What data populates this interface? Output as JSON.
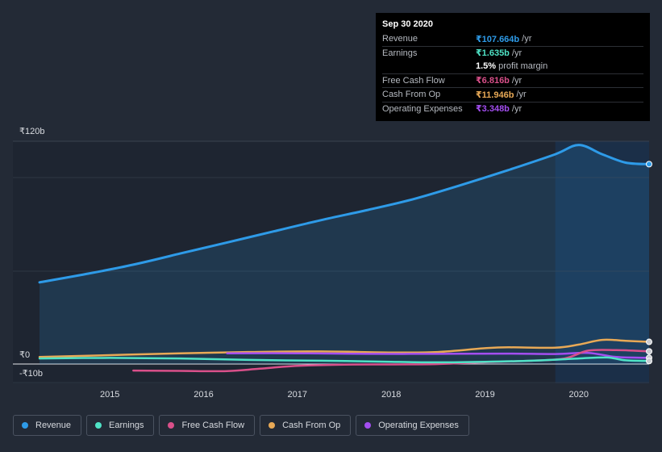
{
  "tooltip": {
    "date": "Sep 30 2020",
    "rows": [
      {
        "label": "Revenue",
        "value": "₹107.664b",
        "unit": "/yr",
        "color": "#2e9be8"
      },
      {
        "label": "Earnings",
        "value": "₹1.635b",
        "unit": "/yr",
        "color": "#4fe3c6"
      },
      {
        "label": "",
        "value": "1.5%",
        "unit": "profit margin",
        "color": "#ffffff"
      },
      {
        "label": "Free Cash Flow",
        "value": "₹6.816b",
        "unit": "/yr",
        "color": "#d9508a"
      },
      {
        "label": "Cash From Op",
        "value": "₹11.946b",
        "unit": "/yr",
        "color": "#e8a956"
      },
      {
        "label": "Operating Expenses",
        "value": "₹3.348b",
        "unit": "/yr",
        "color": "#a34ef0"
      }
    ]
  },
  "legend": [
    {
      "label": "Revenue",
      "color": "#2e9be8"
    },
    {
      "label": "Earnings",
      "color": "#4fe3c6"
    },
    {
      "label": "Free Cash Flow",
      "color": "#d9508a"
    },
    {
      "label": "Cash From Op",
      "color": "#e8a956"
    },
    {
      "label": "Operating Expenses",
      "color": "#a34ef0"
    }
  ],
  "chart_data": {
    "type": "area",
    "ytick_labels": [
      "₹120b",
      "₹0",
      "-₹10b"
    ],
    "ylim": [
      -10,
      120
    ],
    "xlim": [
      2014.25,
      2020.75
    ],
    "xtick_labels": [
      "2015",
      "2016",
      "2017",
      "2018",
      "2019",
      "2020"
    ],
    "highlight_start": 2019.75,
    "series": [
      {
        "name": "Revenue",
        "color": "#2e9be8",
        "x": [
          2014.25,
          2014.75,
          2015.25,
          2015.75,
          2016.25,
          2016.75,
          2017.25,
          2017.75,
          2018.25,
          2018.75,
          2019.25,
          2019.75,
          2020.0,
          2020.25,
          2020.5,
          2020.75
        ],
        "y": [
          44,
          48.5,
          53.5,
          59.5,
          65.5,
          71.5,
          77.5,
          83,
          89,
          96.5,
          104.5,
          113,
          118,
          113,
          108.5,
          107.664
        ]
      },
      {
        "name": "Earnings",
        "color": "#4fe3c6",
        "x": [
          2014.25,
          2015.0,
          2015.75,
          2016.5,
          2017.25,
          2018.0,
          2018.5,
          2019.0,
          2019.5,
          2020.0,
          2020.3,
          2020.5,
          2020.75
        ],
        "y": [
          3.0,
          3.3,
          3.0,
          2.2,
          1.8,
          1.2,
          0.9,
          1.2,
          1.8,
          3.0,
          3.5,
          2.0,
          1.635
        ]
      },
      {
        "name": "Free Cash Flow",
        "color": "#d9508a",
        "x": [
          2015.25,
          2015.75,
          2016.25,
          2016.6,
          2017.0,
          2017.5,
          2018.0,
          2018.5,
          2019.0,
          2019.5,
          2019.85,
          2020.1,
          2020.4,
          2020.75
        ],
        "y": [
          -3.5,
          -3.7,
          -3.8,
          -2.5,
          -1.0,
          -0.3,
          -0.2,
          0.0,
          1.0,
          1.8,
          3.0,
          7.2,
          7.5,
          6.816
        ]
      },
      {
        "name": "Cash From Op",
        "color": "#e8a956",
        "x": [
          2014.25,
          2015.0,
          2015.75,
          2016.5,
          2017.25,
          2018.0,
          2018.5,
          2019.0,
          2019.25,
          2019.75,
          2020.0,
          2020.25,
          2020.5,
          2020.75
        ],
        "y": [
          3.8,
          4.8,
          5.8,
          6.5,
          6.8,
          6.2,
          6.5,
          8.5,
          9.0,
          8.8,
          10.5,
          13.0,
          12.5,
          11.946
        ]
      },
      {
        "name": "Operating Expenses",
        "color": "#a34ef0",
        "x": [
          2016.25,
          2017.0,
          2017.75,
          2018.5,
          2019.25,
          2019.75,
          2020.1,
          2020.4,
          2020.75
        ],
        "y": [
          5.8,
          5.8,
          5.5,
          5.5,
          5.6,
          5.4,
          6.0,
          3.8,
          3.348
        ]
      }
    ]
  }
}
